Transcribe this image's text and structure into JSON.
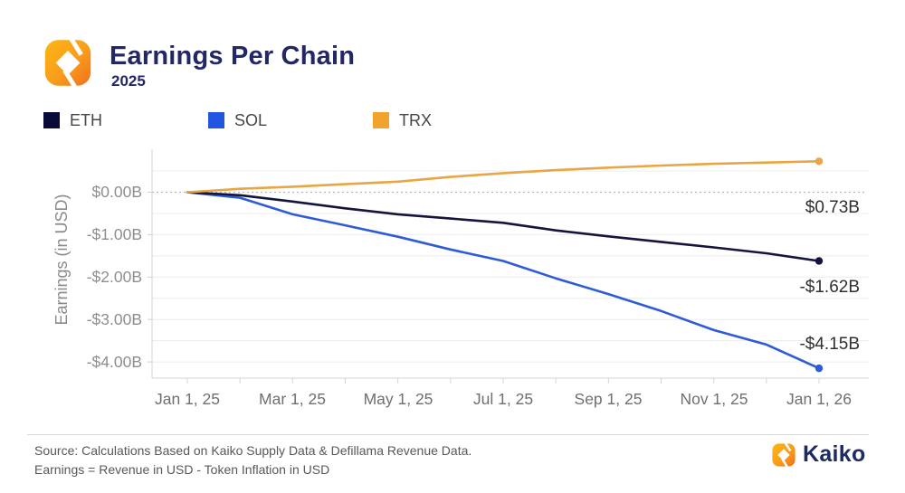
{
  "header": {
    "title": "Earnings Per Chain",
    "subtitle": "2025"
  },
  "legend": [
    {
      "label": "ETH",
      "color": "#0a0a38"
    },
    {
      "label": "SOL",
      "color": "#2356e0"
    },
    {
      "label": "TRX",
      "color": "#f2a32e"
    }
  ],
  "chart_data": {
    "type": "line",
    "x": [
      "Jan 1, 25",
      "Feb 1, 25",
      "Mar 1, 25",
      "Apr 1, 25",
      "May 1, 25",
      "Jun 1, 25",
      "Jul 1, 25",
      "Aug 1, 25",
      "Sep 1, 25",
      "Oct 1, 25",
      "Nov 1, 25",
      "Dec 1, 25",
      "Jan 1, 26"
    ],
    "x_tick_labels": [
      "Jan 1, 25",
      "Mar 1, 25",
      "May 1, 25",
      "Jul 1, 25",
      "Sep 1, 25",
      "Nov 1, 25",
      "Jan 1, 26"
    ],
    "ylabel": "Earnings (in USD)",
    "y_tick_labels": [
      "$0.00B",
      "-$1.00B",
      "-$2.00B",
      "-$3.00B",
      "-$4.00B"
    ],
    "y_ticks": [
      0,
      -1,
      -2,
      -3,
      -4
    ],
    "ylim": [
      -4.4,
      1.0
    ],
    "grid_step": 0.5,
    "unit": "billions USD",
    "legend_position": "top",
    "series": [
      {
        "name": "ETH",
        "color": "#14143e",
        "values": [
          0,
          -0.07,
          -0.22,
          -0.38,
          -0.52,
          -0.62,
          -0.72,
          -0.9,
          -1.04,
          -1.17,
          -1.3,
          -1.44,
          -1.62
        ],
        "end_value": -1.62,
        "end_label": "-$1.62B"
      },
      {
        "name": "SOL",
        "color": "#2e5cd8",
        "values": [
          0,
          -0.13,
          -0.52,
          -0.78,
          -1.05,
          -1.35,
          -1.62,
          -2.03,
          -2.4,
          -2.8,
          -3.25,
          -3.59,
          -4.15
        ],
        "end_value": -4.15,
        "end_label": "-$4.15B"
      },
      {
        "name": "TRX",
        "color": "#e8a645",
        "values": [
          0,
          0.08,
          0.13,
          0.19,
          0.25,
          0.36,
          0.45,
          0.52,
          0.58,
          0.63,
          0.67,
          0.7,
          0.73
        ],
        "end_value": 0.73,
        "end_label": "$0.73B"
      }
    ],
    "annotations": [
      {
        "text": "$0.73B",
        "series": "TRX"
      },
      {
        "text": "-$1.62B",
        "series": "ETH"
      },
      {
        "text": "-$4.15B",
        "series": "SOL"
      }
    ]
  },
  "footer": {
    "line1": "Source: Calculations Based on Kaiko Supply Data & Defillama Revenue Data.",
    "line2": "Earnings = Revenue in USD - Token Inflation in USD",
    "brand": "Kaiko"
  }
}
